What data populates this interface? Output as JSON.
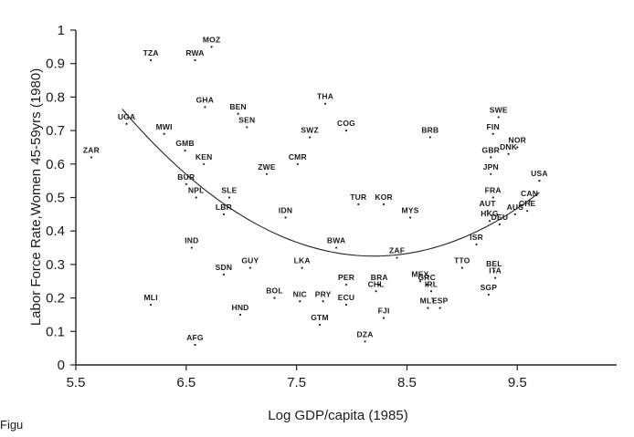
{
  "chart_data": {
    "type": "scatter",
    "title": "",
    "xlabel": "Log GDP/capita  (1985)",
    "ylabel": "Labor Force Rate,Women 45-59yrs (1980)",
    "xlim": [
      5.5,
      10.4
    ],
    "ylim": [
      0,
      1
    ],
    "x_ticks": [
      "5.5",
      "6.5",
      "7.5",
      "8.5",
      "9.5"
    ],
    "x_tick_values": [
      5.5,
      6.5,
      7.5,
      8.5,
      9.5
    ],
    "y_ticks": [
      "0",
      "0.1",
      "0.2",
      "0.3",
      "0.4",
      "0.5",
      "0.6",
      "0.7",
      "0.8",
      "0.9",
      "1"
    ],
    "y_tick_values": [
      0,
      0.1,
      0.2,
      0.3,
      0.4,
      0.5,
      0.6,
      0.7,
      0.8,
      0.9,
      1
    ],
    "grid": false,
    "footer_text": "Figu",
    "points": [
      {
        "label": "MOZ",
        "x": 6.73,
        "y": 0.95
      },
      {
        "label": "TZA",
        "x": 6.18,
        "y": 0.91
      },
      {
        "label": "RWA",
        "x": 6.58,
        "y": 0.91
      },
      {
        "label": "GHA",
        "x": 6.67,
        "y": 0.77
      },
      {
        "label": "BEN",
        "x": 6.97,
        "y": 0.75
      },
      {
        "label": "THA",
        "x": 7.76,
        "y": 0.78
      },
      {
        "label": "SWE",
        "x": 9.33,
        "y": 0.74
      },
      {
        "label": "UGA",
        "x": 5.96,
        "y": 0.72
      },
      {
        "label": "MWI",
        "x": 6.3,
        "y": 0.69
      },
      {
        "label": "SEN",
        "x": 7.05,
        "y": 0.71
      },
      {
        "label": "COG",
        "x": 7.95,
        "y": 0.7
      },
      {
        "label": "SWZ",
        "x": 7.62,
        "y": 0.68
      },
      {
        "label": "BRB",
        "x": 8.71,
        "y": 0.68
      },
      {
        "label": "FIN",
        "x": 9.28,
        "y": 0.69
      },
      {
        "label": "NOR",
        "x": 9.5,
        "y": 0.65
      },
      {
        "label": "GMB",
        "x": 6.49,
        "y": 0.64
      },
      {
        "label": "DNK",
        "x": 9.42,
        "y": 0.63
      },
      {
        "label": "GBR",
        "x": 9.26,
        "y": 0.62
      },
      {
        "label": "ZAR",
        "x": 5.64,
        "y": 0.62
      },
      {
        "label": "KEN",
        "x": 6.66,
        "y": 0.6
      },
      {
        "label": "CMR",
        "x": 7.51,
        "y": 0.6
      },
      {
        "label": "ZWE",
        "x": 7.23,
        "y": 0.57
      },
      {
        "label": "JPN",
        "x": 9.26,
        "y": 0.57
      },
      {
        "label": "USA",
        "x": 9.7,
        "y": 0.55
      },
      {
        "label": "BUR",
        "x": 6.5,
        "y": 0.54
      },
      {
        "label": "NPL",
        "x": 6.59,
        "y": 0.5
      },
      {
        "label": "SLE",
        "x": 6.89,
        "y": 0.5
      },
      {
        "label": "FRA",
        "x": 9.28,
        "y": 0.5
      },
      {
        "label": "CAN",
        "x": 9.61,
        "y": 0.49
      },
      {
        "label": "TUR",
        "x": 8.06,
        "y": 0.48
      },
      {
        "label": "KOR",
        "x": 8.29,
        "y": 0.48
      },
      {
        "label": "CHE",
        "x": 9.59,
        "y": 0.46
      },
      {
        "label": "AUS",
        "x": 9.48,
        "y": 0.45
      },
      {
        "label": "AUT",
        "x": 9.23,
        "y": 0.46
      },
      {
        "label": "LBR",
        "x": 6.84,
        "y": 0.45
      },
      {
        "label": "IDN",
        "x": 7.4,
        "y": 0.44
      },
      {
        "label": "MYS",
        "x": 8.53,
        "y": 0.44
      },
      {
        "label": "HKG",
        "x": 9.25,
        "y": 0.43
      },
      {
        "label": "DEU",
        "x": 9.34,
        "y": 0.42
      },
      {
        "label": "IND",
        "x": 6.55,
        "y": 0.35
      },
      {
        "label": "BWA",
        "x": 7.86,
        "y": 0.35
      },
      {
        "label": "ZAF",
        "x": 8.41,
        "y": 0.32
      },
      {
        "label": "ISR",
        "x": 9.13,
        "y": 0.36
      },
      {
        "label": "GUY",
        "x": 7.08,
        "y": 0.29
      },
      {
        "label": "LKA",
        "x": 7.55,
        "y": 0.29
      },
      {
        "label": "TTO",
        "x": 9.0,
        "y": 0.29
      },
      {
        "label": "SDN",
        "x": 6.84,
        "y": 0.27
      },
      {
        "label": "BEL",
        "x": 9.29,
        "y": 0.28
      },
      {
        "label": "MEX",
        "x": 8.62,
        "y": 0.25
      },
      {
        "label": "ITA",
        "x": 9.3,
        "y": 0.26
      },
      {
        "label": "BRA",
        "x": 8.25,
        "y": 0.24
      },
      {
        "label": "GRC",
        "x": 8.68,
        "y": 0.24
      },
      {
        "label": "PER",
        "x": 7.95,
        "y": 0.24
      },
      {
        "label": "CHL",
        "x": 8.22,
        "y": 0.22
      },
      {
        "label": "IRL",
        "x": 8.72,
        "y": 0.22
      },
      {
        "label": "SGP",
        "x": 9.24,
        "y": 0.21
      },
      {
        "label": "BOL",
        "x": 7.3,
        "y": 0.2
      },
      {
        "label": "PRY",
        "x": 7.74,
        "y": 0.19
      },
      {
        "label": "NIC",
        "x": 7.53,
        "y": 0.19
      },
      {
        "label": "ECU",
        "x": 7.95,
        "y": 0.18
      },
      {
        "label": "MLI",
        "x": 6.18,
        "y": 0.18
      },
      {
        "label": "MLT",
        "x": 8.69,
        "y": 0.17
      },
      {
        "label": "ESP",
        "x": 8.8,
        "y": 0.17
      },
      {
        "label": "HND",
        "x": 6.99,
        "y": 0.15
      },
      {
        "label": "FJI",
        "x": 8.29,
        "y": 0.14
      },
      {
        "label": "GTM",
        "x": 7.71,
        "y": 0.12
      },
      {
        "label": "DZA",
        "x": 8.12,
        "y": 0.07
      },
      {
        "label": "AFG",
        "x": 6.58,
        "y": 0.06
      }
    ],
    "fit_curve": {
      "type": "quadratic",
      "x_range": [
        5.92,
        9.7
      ],
      "vertex_x": 8.2,
      "vertex_y": 0.325,
      "a": 0.0845
    }
  }
}
